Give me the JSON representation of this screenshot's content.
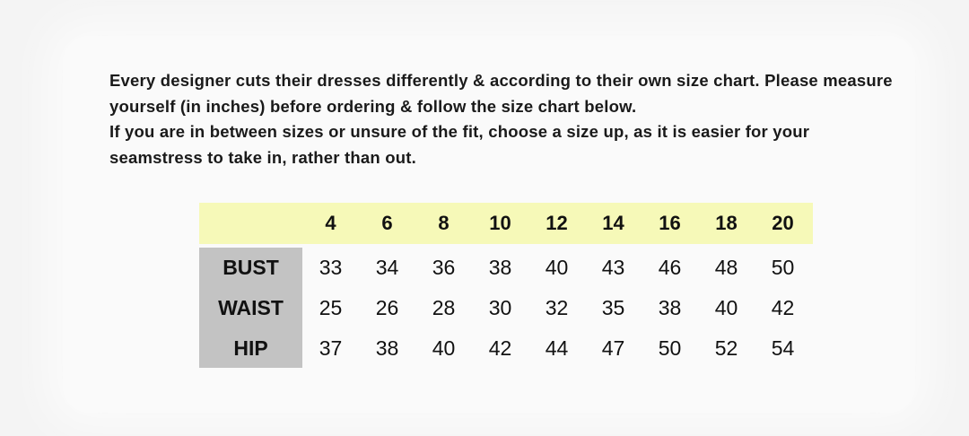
{
  "intro": {
    "paragraph1": "Every designer cuts their dresses differently & according to their own size chart. Please measure yourself (in inches) before ordering & follow the size chart below.",
    "paragraph2": "If you are in between sizes or unsure of the fit, choose a size up, as it is easier for your seamstress to take in, rather than out."
  },
  "colors": {
    "header_band": "#f6f9b8",
    "label_column": "#c3c3c3"
  },
  "size_chart": {
    "sizes": [
      "4",
      "6",
      "8",
      "10",
      "12",
      "14",
      "16",
      "18",
      "20"
    ],
    "rows": [
      {
        "label": "BUST",
        "values": [
          "33",
          "34",
          "36",
          "38",
          "40",
          "43",
          "46",
          "48",
          "50"
        ]
      },
      {
        "label": "WAIST",
        "values": [
          "25",
          "26",
          "28",
          "30",
          "32",
          "35",
          "38",
          "40",
          "42"
        ]
      },
      {
        "label": "HIP",
        "values": [
          "37",
          "38",
          "40",
          "42",
          "44",
          "47",
          "50",
          "52",
          "54"
        ]
      }
    ]
  }
}
